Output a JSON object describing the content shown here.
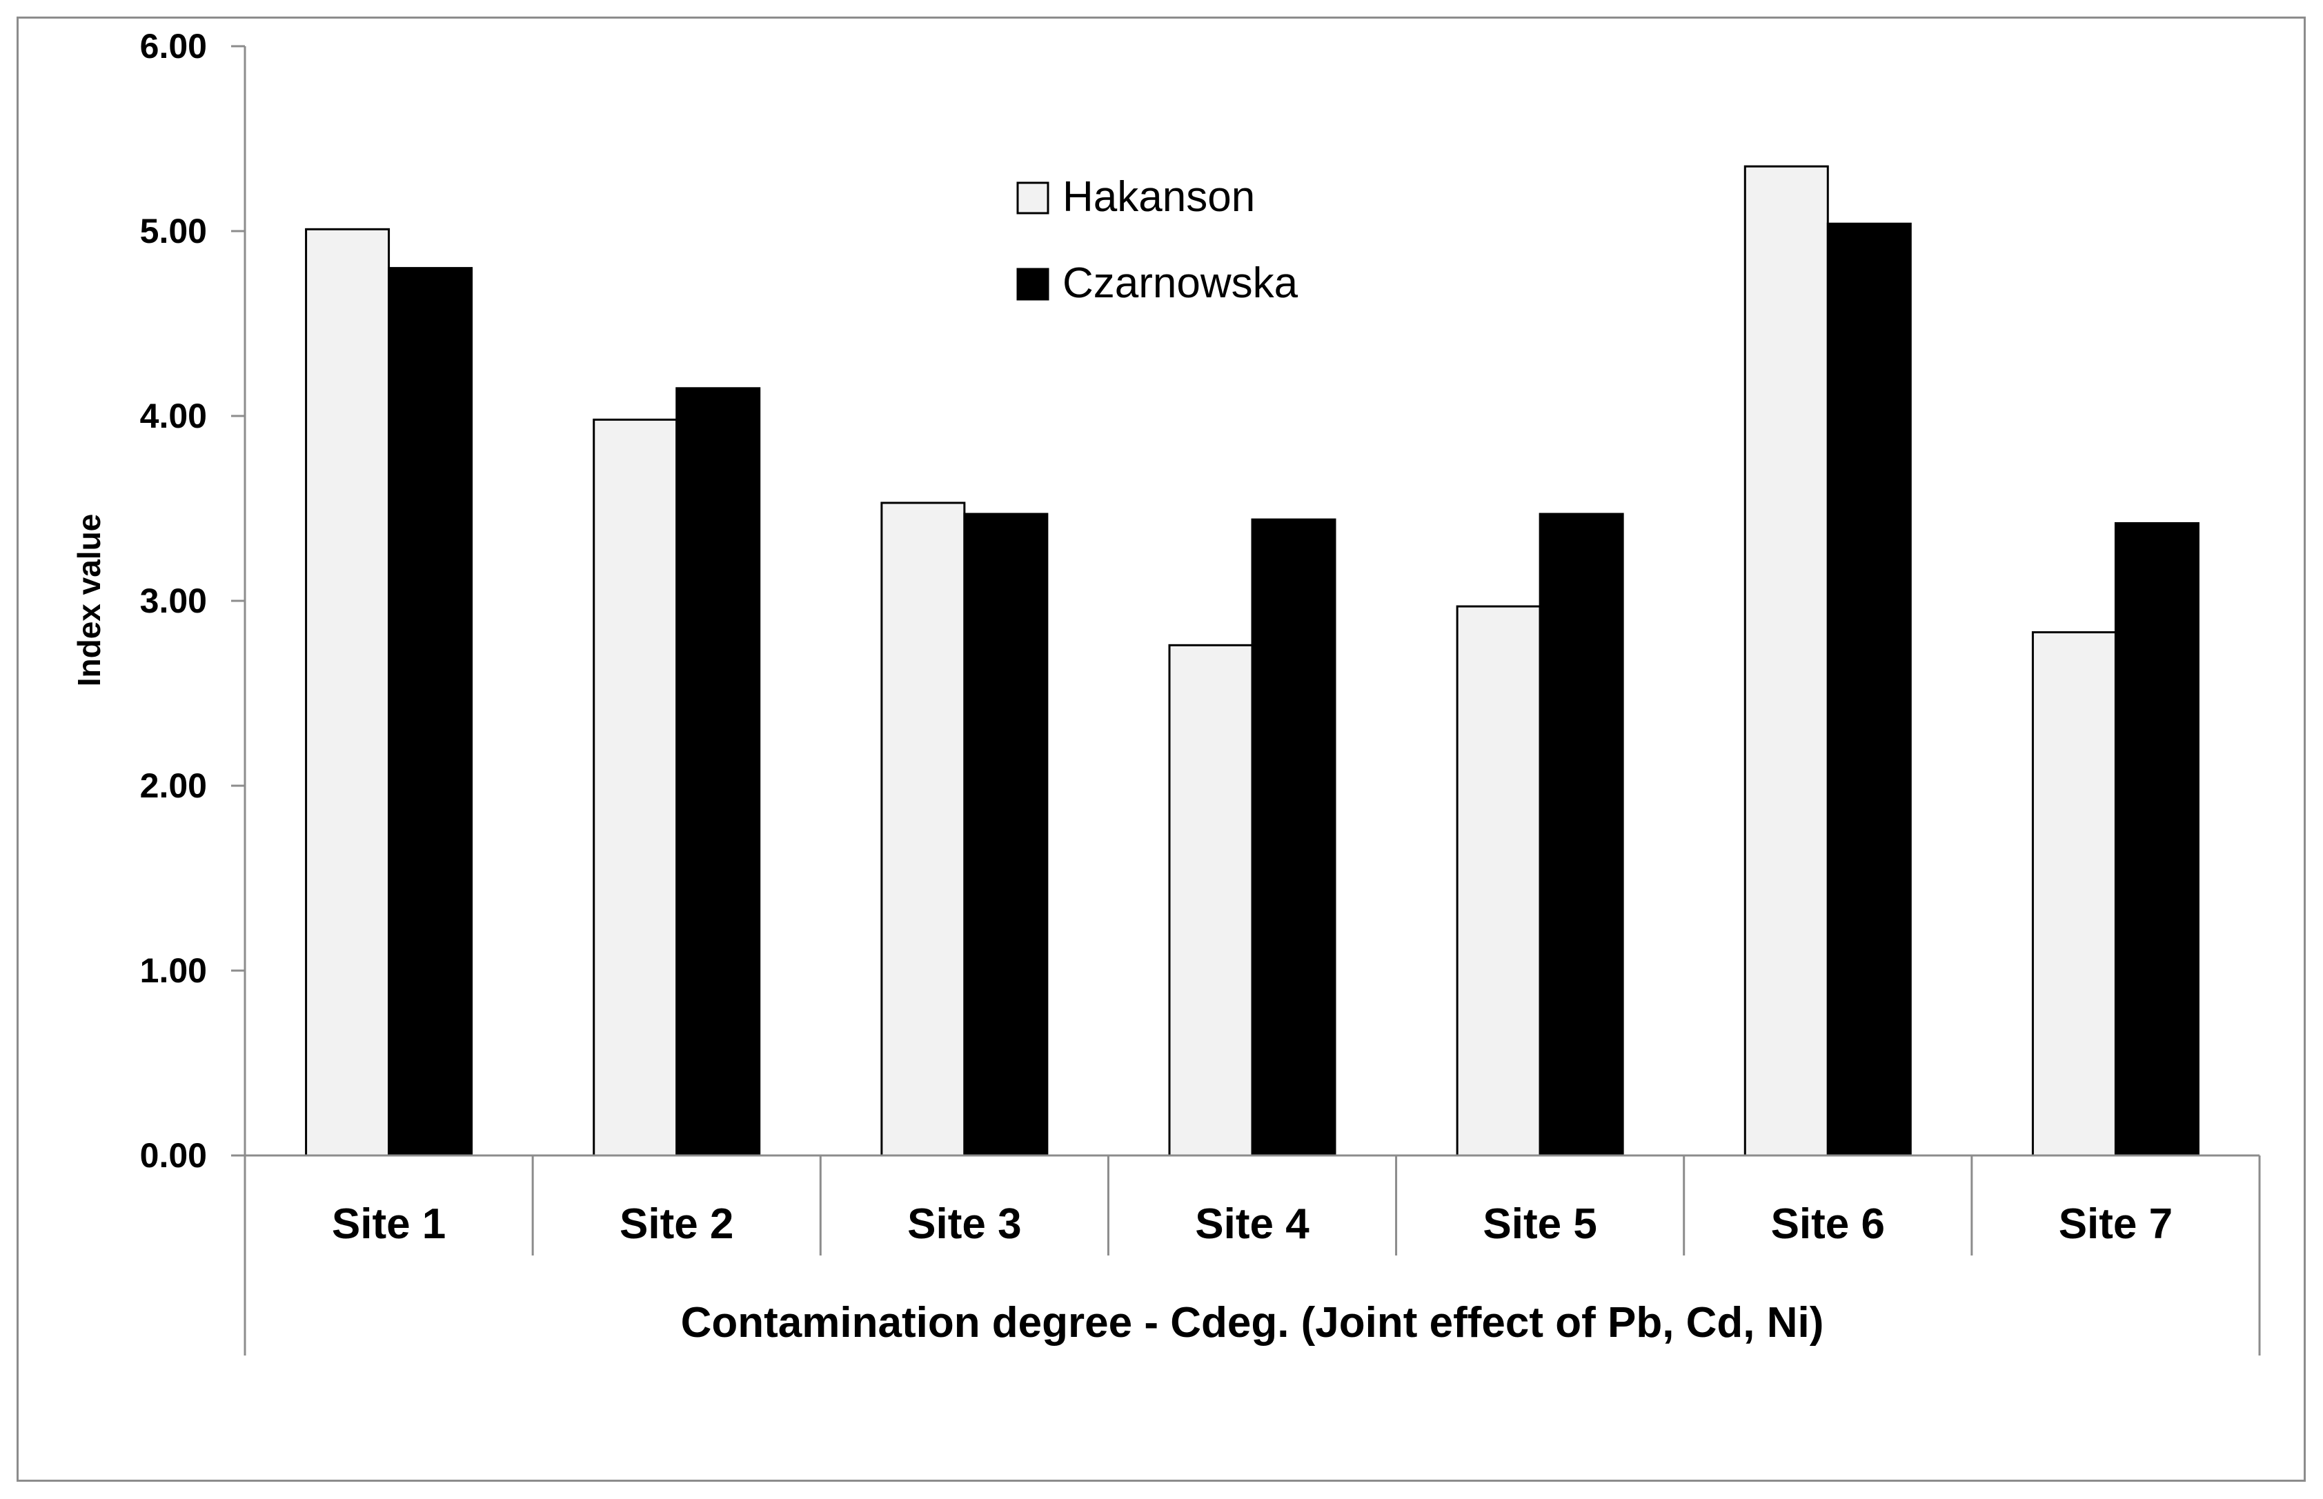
{
  "chart_data": {
    "type": "bar",
    "title": "",
    "categories": [
      "Site 1",
      "Site 2",
      "Site 3",
      "Site 4",
      "Site 5",
      "Site 6",
      "Site 7"
    ],
    "series": [
      {
        "name": "Hakanson",
        "color": "#f2f2f2",
        "values": [
          5.01,
          3.98,
          3.53,
          2.76,
          2.97,
          5.35,
          2.83
        ]
      },
      {
        "name": "Czarnowska",
        "color": "#000000",
        "values": [
          4.8,
          4.15,
          3.47,
          3.44,
          3.47,
          5.04,
          3.42
        ]
      }
    ],
    "xlabel": "Contamination degree - Cdeg. (Joint effect of Pb, Cd, Ni)",
    "ylabel": "Index value",
    "ylim": [
      0,
      6
    ],
    "yticks": [
      "0.00",
      "1.00",
      "2.00",
      "3.00",
      "4.00",
      "5.00",
      "6.00"
    ],
    "legend_position": "top-center",
    "grid": false
  }
}
